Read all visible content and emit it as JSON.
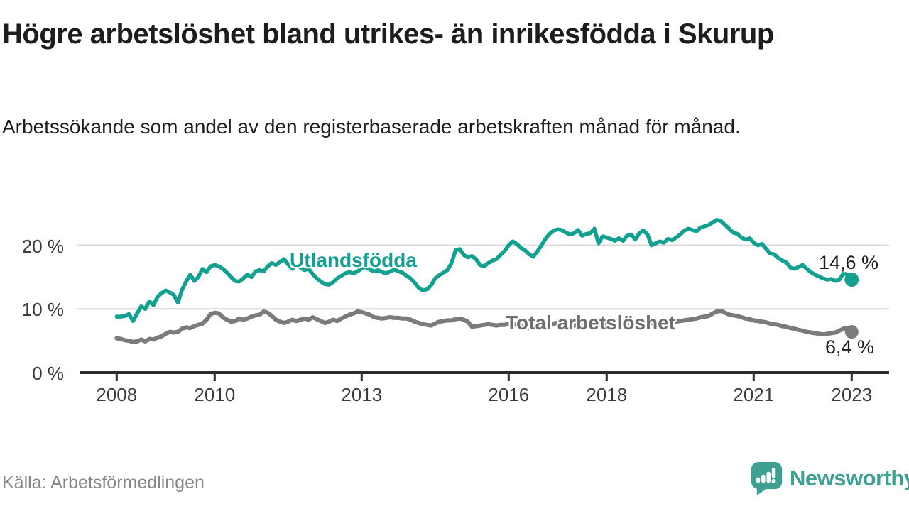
{
  "title": "Högre arbetslöshet bland utrikes- än inrikesfödda i Skurup",
  "subtitle": "Arbetssökande som andel av den registerbaserade arbetskraften månad för månad.",
  "source": "Källa: Arbetsförmedlingen",
  "logo": {
    "text": "Newsworthy"
  },
  "colors": {
    "accent_teal": "#12a091",
    "line_gray": "#7b7b7b",
    "axis": "#2d2d2d",
    "gridline": "#d9d9d9",
    "text": "#1d1d1b",
    "tick_text": "#3c3c3c",
    "source_text": "#878787",
    "logo_teal": "#3da092"
  },
  "chart_data": {
    "type": "line",
    "x_start_year": 2008,
    "x_end_label_value": "2023",
    "months_per_point": 1,
    "grid": "horizontal-only",
    "legend_position": "inline-labels",
    "ylim": [
      0,
      26
    ],
    "y_unit": "%",
    "y_ticks": [
      {
        "value": 0,
        "label": "0 %"
      },
      {
        "value": 10,
        "label": "10 %"
      },
      {
        "value": 20,
        "label": "20 %"
      }
    ],
    "y_gridlines": [
      10,
      20
    ],
    "x_ticks": [
      {
        "year": 2008,
        "label": "2008"
      },
      {
        "year": 2010,
        "label": "2010"
      },
      {
        "year": 2013,
        "label": "2013"
      },
      {
        "year": 2016,
        "label": "2016"
      },
      {
        "year": 2018,
        "label": "2018"
      },
      {
        "year": 2021,
        "label": "2021"
      },
      {
        "year": 2023,
        "label": "2023"
      }
    ],
    "series": [
      {
        "name": "Utlandsfödda",
        "color": "#12a091",
        "stroke_width": 5.5,
        "end_label": "14,6 %",
        "end_value": 14.6,
        "values": [
          8.8,
          8.8,
          8.9,
          9.2,
          8.1,
          9.3,
          10.4,
          10.0,
          11.2,
          10.6,
          11.9,
          12.5,
          12.9,
          12.6,
          12.2,
          11.0,
          13.0,
          14.3,
          15.4,
          14.4,
          15.0,
          16.3,
          15.8,
          16.7,
          16.9,
          16.7,
          16.3,
          15.7,
          15.0,
          14.4,
          14.3,
          14.8,
          15.4,
          15.0,
          15.9,
          16.1,
          15.9,
          16.7,
          17.2,
          16.9,
          17.4,
          17.8,
          17.0,
          16.3,
          16.9,
          16.5,
          16.1,
          16.3,
          15.5,
          14.8,
          14.3,
          13.9,
          13.8,
          14.2,
          14.8,
          15.2,
          15.6,
          15.8,
          15.6,
          15.9,
          16.4,
          16.6,
          16.2,
          15.9,
          16.1,
          15.8,
          15.6,
          15.9,
          16.2,
          15.9,
          15.7,
          15.2,
          14.8,
          14.1,
          13.3,
          12.9,
          13.1,
          13.7,
          14.8,
          15.3,
          15.7,
          16.1,
          17.2,
          19.2,
          19.4,
          18.5,
          18.1,
          18.3,
          17.8,
          16.9,
          16.7,
          17.2,
          17.6,
          17.8,
          18.5,
          19.1,
          20.0,
          20.6,
          20.2,
          19.6,
          19.2,
          18.6,
          18.2,
          19.0,
          20.0,
          21.0,
          21.8,
          22.3,
          22.5,
          22.4,
          22.0,
          21.7,
          21.9,
          22.4,
          21.5,
          21.8,
          21.9,
          22.6,
          20.3,
          21.4,
          21.2,
          21.0,
          20.7,
          21.1,
          20.7,
          21.5,
          21.7,
          20.9,
          21.9,
          22.3,
          21.7,
          20.0,
          20.3,
          20.6,
          20.4,
          21.0,
          20.8,
          21.2,
          21.7,
          22.3,
          22.6,
          22.4,
          22.2,
          22.8,
          23.0,
          23.2,
          23.6,
          24.0,
          23.8,
          23.2,
          22.6,
          22.0,
          21.8,
          21.2,
          20.9,
          21.1,
          20.4,
          20.0,
          20.2,
          19.5,
          18.7,
          18.6,
          18.0,
          17.6,
          17.3,
          16.5,
          16.3,
          16.6,
          16.9,
          16.3,
          15.8,
          15.4,
          15.1,
          14.8,
          14.6,
          14.7,
          14.4,
          14.6,
          15.6,
          15.4,
          14.6
        ]
      },
      {
        "name": "Total arbetslöshet",
        "color": "#7b7b7b",
        "stroke_width": 6,
        "end_label": "6,4 %",
        "end_value": 6.4,
        "values": [
          5.4,
          5.3,
          5.1,
          5.0,
          4.8,
          4.9,
          5.2,
          4.9,
          5.3,
          5.2,
          5.5,
          5.7,
          6.1,
          6.4,
          6.3,
          6.4,
          6.9,
          7.1,
          7.0,
          7.3,
          7.5,
          7.7,
          8.3,
          9.2,
          9.4,
          9.3,
          8.7,
          8.3,
          8.0,
          8.1,
          8.5,
          8.3,
          8.5,
          8.8,
          9.0,
          9.1,
          9.6,
          9.4,
          8.9,
          8.3,
          8.0,
          7.8,
          8.0,
          8.3,
          8.1,
          8.3,
          8.5,
          8.3,
          8.7,
          8.4,
          8.1,
          7.8,
          8.0,
          8.3,
          8.1,
          8.5,
          8.8,
          9.1,
          9.3,
          9.6,
          9.5,
          9.3,
          9.1,
          8.7,
          8.6,
          8.5,
          8.6,
          8.7,
          8.6,
          8.6,
          8.5,
          8.5,
          8.3,
          8.0,
          7.8,
          7.6,
          7.5,
          7.4,
          7.7,
          8.0,
          8.1,
          8.2,
          8.2,
          8.4,
          8.5,
          8.3,
          8.0,
          7.2,
          7.3,
          7.4,
          7.5,
          7.6,
          7.5,
          7.4,
          7.5,
          7.5,
          7.7,
          7.6,
          7.5,
          7.4,
          7.2,
          7.0,
          6.9,
          7.1,
          7.3,
          7.5,
          7.6,
          7.7,
          7.8,
          7.7,
          7.6,
          7.5,
          7.4,
          7.5,
          7.4,
          7.5,
          7.6,
          7.7,
          7.6,
          7.7,
          7.8,
          7.7,
          7.5,
          7.4,
          7.3,
          7.4,
          7.5,
          7.4,
          7.5,
          7.6,
          7.7,
          7.8,
          7.9,
          7.8,
          7.7,
          7.8,
          7.9,
          8.0,
          8.1,
          8.2,
          8.3,
          8.4,
          8.5,
          8.7,
          8.8,
          8.9,
          9.3,
          9.6,
          9.7,
          9.4,
          9.1,
          9.0,
          8.9,
          8.7,
          8.5,
          8.4,
          8.2,
          8.1,
          8.0,
          7.9,
          7.7,
          7.6,
          7.5,
          7.3,
          7.2,
          7.0,
          6.9,
          6.7,
          6.6,
          6.4,
          6.3,
          6.2,
          6.1,
          6.0,
          6.1,
          6.2,
          6.3,
          6.6,
          6.9,
          7.0,
          6.4
        ]
      }
    ]
  }
}
